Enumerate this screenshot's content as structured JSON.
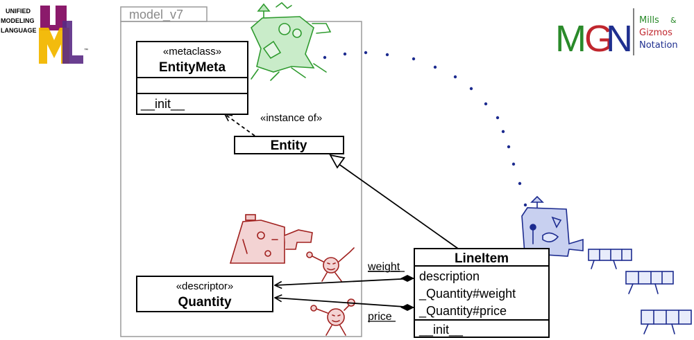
{
  "logos": {
    "uml": {
      "line1": "UNIFIED",
      "line2": "MODELING",
      "line3": "LANGUAGE",
      "tm": "™",
      "colors": {
        "U": "#8b1a6b",
        "M": "#f2b700",
        "L": "#5a2a84"
      }
    },
    "mgn": {
      "letters": [
        "M",
        "G",
        "N"
      ],
      "letter_colors": [
        "#2a8a2a",
        "#c0262d",
        "#1f2f8f"
      ],
      "line1": "Mills",
      "amp": "&",
      "line2": "Gizmos",
      "line3": "Notation"
    }
  },
  "package": {
    "name": "model_v7"
  },
  "classes": {
    "entity_meta": {
      "stereotype": "«metaclass»",
      "name": "EntityMeta",
      "method": "__init__"
    },
    "entity": {
      "name": "Entity"
    },
    "quantity": {
      "stereotype": "«descriptor»",
      "name": "Quantity"
    },
    "line_item": {
      "name": "LineItem",
      "attributes": [
        "description",
        "_Quantity#weight",
        "_Quantity#price"
      ],
      "method": "__init__"
    }
  },
  "relations": {
    "instance_of": "«instance of»",
    "weight": "weight",
    "price": "price"
  },
  "colors": {
    "gizmo_green": "#2e9a2e",
    "gizmo_red": "#a0201e",
    "gizmo_blue": "#1c2b8f",
    "package_border": "#9a9a9a"
  }
}
